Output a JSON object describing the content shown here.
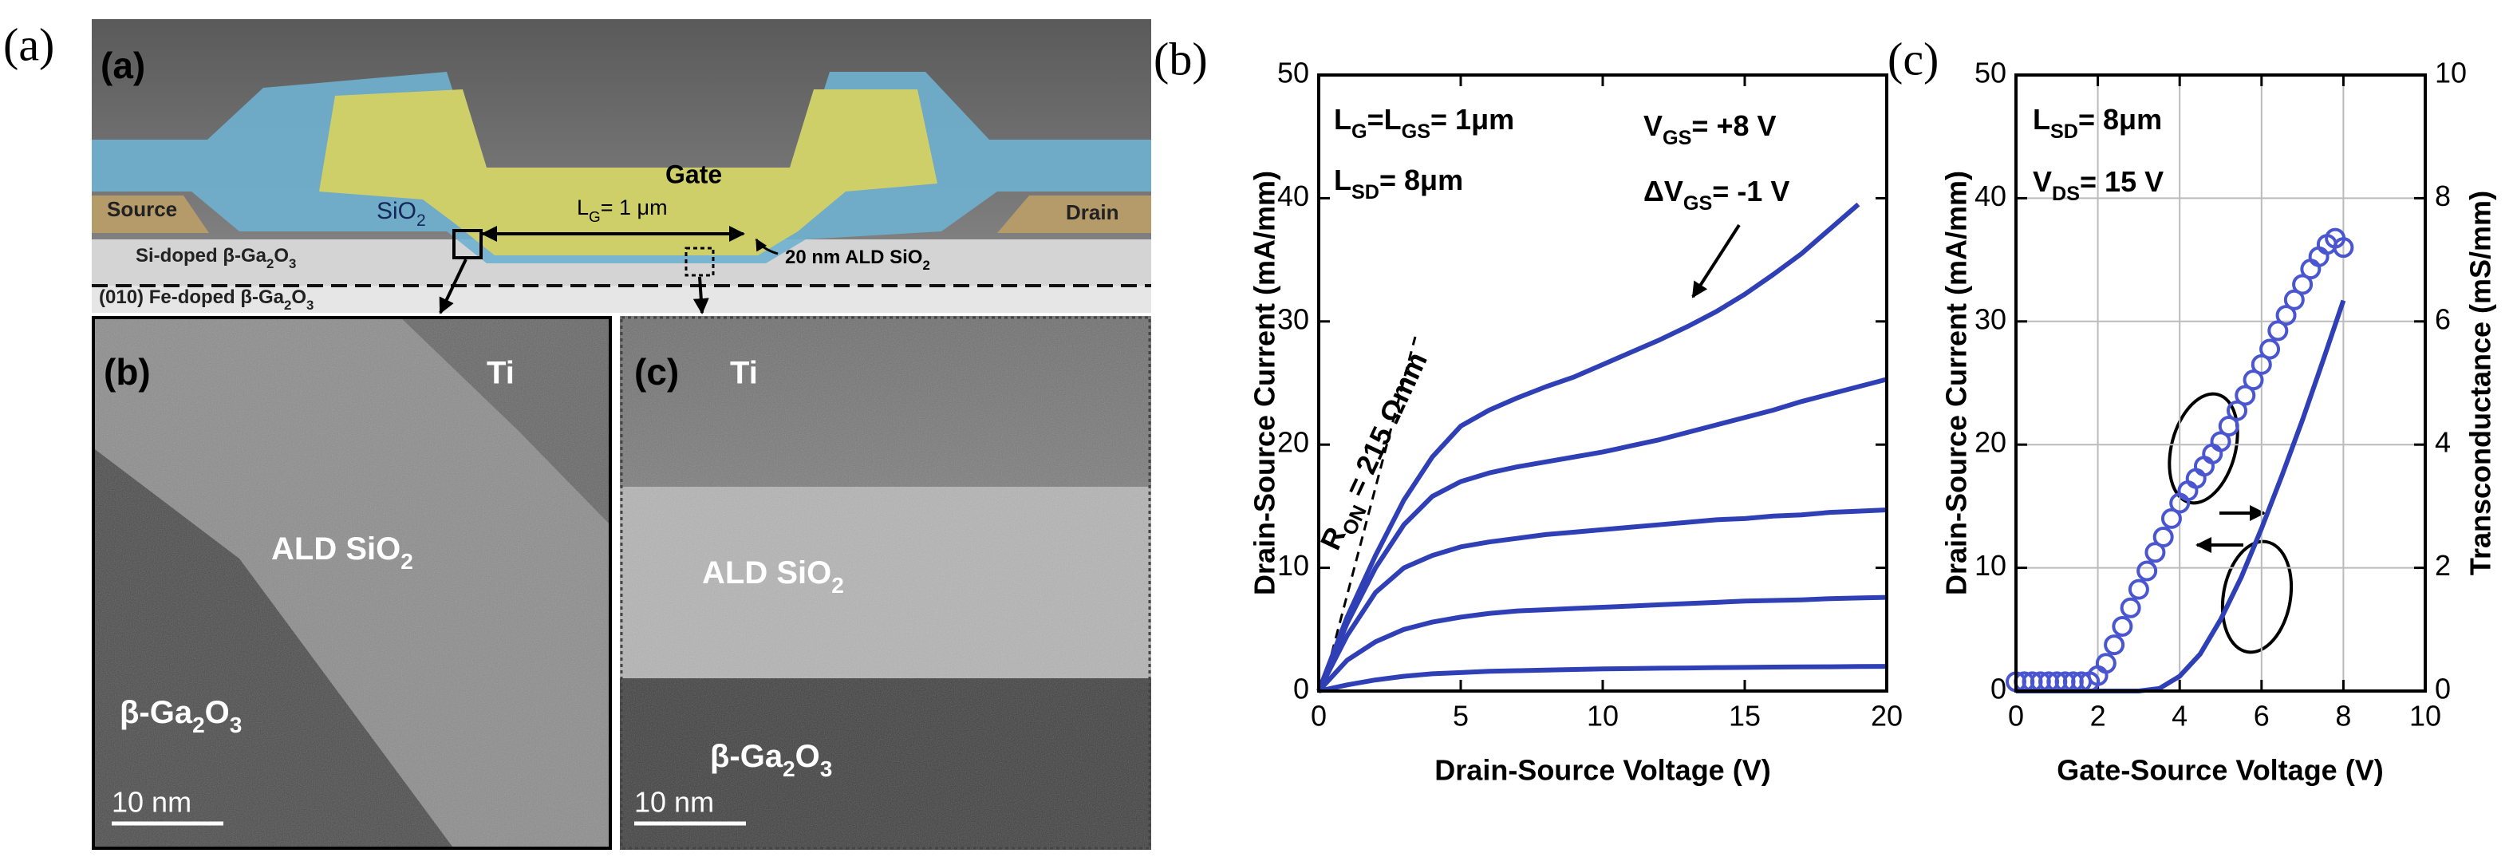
{
  "panel_a": {
    "label_outer": "(a)",
    "label_inner": "(a)",
    "gate": "Gate",
    "source": "Source",
    "drain": "Drain",
    "sio2": [
      "SiO",
      "2"
    ],
    "gate_length": [
      "L",
      "G",
      "= 1 μm"
    ],
    "ald_note": [
      "20 nm ALD SiO",
      "2"
    ],
    "si_doped": [
      "Si-doped β-Ga",
      "2",
      "O",
      "3"
    ],
    "fe_doped": [
      "(010) Fe-doped β-Ga",
      "2",
      "O",
      "3"
    ],
    "tem_b": {
      "label": "(b)",
      "ti": "Ti",
      "oxide": [
        "ALD SiO",
        "2"
      ],
      "substrate": [
        "β-Ga",
        "2",
        "O",
        "3"
      ],
      "scale": "10 nm"
    },
    "tem_c": {
      "label": "(c)",
      "ti": "Ti",
      "oxide": [
        "ALD SiO",
        "2"
      ],
      "substrate": [
        "β-Ga",
        "2",
        "O",
        "3"
      ],
      "scale": "10 nm"
    }
  },
  "chart_data": [
    {
      "type": "line",
      "panel_label": "(b)",
      "xlabel": "Drain-Source Voltage (V)",
      "ylabel": "Drain-Source Current (mA/mm)",
      "x": [
        0,
        1,
        2,
        3,
        4,
        5,
        6,
        7,
        8,
        9,
        10,
        11,
        12,
        13,
        14,
        15,
        16,
        17,
        18,
        19,
        20
      ],
      "series": [
        {
          "color": "#2f3fb5",
          "values": [
            0,
            6,
            11,
            15.5,
            19,
            21.5,
            22.8,
            23.8,
            24.7,
            25.5,
            26.5,
            27.5,
            28.5,
            29.6,
            30.8,
            32.2,
            33.8,
            35.5,
            37.5,
            39.5,
            null
          ]
        },
        {
          "color": "#2f3fb5",
          "values": [
            0,
            5.5,
            10,
            13.5,
            15.8,
            17,
            17.7,
            18.2,
            18.6,
            19,
            19.4,
            19.9,
            20.4,
            21,
            21.6,
            22.2,
            22.8,
            23.5,
            24.1,
            24.7,
            25.3
          ]
        },
        {
          "color": "#2f3fb5",
          "values": [
            0,
            4.5,
            8,
            10,
            11,
            11.7,
            12.1,
            12.4,
            12.7,
            12.9,
            13.1,
            13.3,
            13.5,
            13.7,
            13.9,
            14,
            14.2,
            14.3,
            14.5,
            14.6,
            14.7
          ]
        },
        {
          "color": "#2f3fb5",
          "values": [
            0,
            2.5,
            4,
            5,
            5.6,
            6,
            6.3,
            6.5,
            6.6,
            6.7,
            6.8,
            6.9,
            7,
            7.1,
            7.2,
            7.3,
            7.35,
            7.4,
            7.5,
            7.55,
            7.6
          ]
        },
        {
          "color": "#2f3fb5",
          "values": [
            0,
            0.5,
            0.9,
            1.2,
            1.4,
            1.5,
            1.6,
            1.65,
            1.7,
            1.75,
            1.8,
            1.82,
            1.85,
            1.87,
            1.9,
            1.92,
            1.94,
            1.96,
            1.97,
            1.99,
            2
          ]
        }
      ],
      "xlim": [
        0,
        20
      ],
      "xticks": [
        0,
        5,
        10,
        15,
        20
      ],
      "ylim": [
        0,
        50
      ],
      "yticks": [
        0,
        10,
        20,
        30,
        40,
        50
      ],
      "grid": false,
      "annotations": [
        [
          "L",
          "G",
          "=L",
          "GS",
          "= 1μm"
        ],
        [
          "L",
          "SD",
          "= 8μm"
        ],
        [
          "V",
          "GS",
          "= +8 V"
        ],
        [
          "ΔV",
          "GS",
          "= -1 V"
        ],
        [
          "R",
          "ON",
          " = 215 Ωmm"
        ]
      ]
    },
    {
      "type": "line",
      "panel_label": "(c)",
      "xlabel": "Gate-Source Voltage (V)",
      "ylabel": "Drain-Source Current (mA/mm)",
      "y2label": "Transconductance (mS/mm)",
      "series": [
        {
          "color": "#2f3fb5",
          "axis": "y",
          "marker": "none",
          "x": [
            0,
            0.5,
            1,
            1.5,
            2,
            2.5,
            3,
            3.5,
            4,
            4.5,
            5,
            5.5,
            6,
            6.5,
            7,
            7.5,
            8
          ],
          "values": [
            0,
            0,
            0,
            0,
            0,
            0,
            0,
            0.2,
            1.2,
            3,
            5.8,
            9.2,
            13.2,
            17.5,
            22,
            26.8,
            31.7
          ]
        },
        {
          "color": "#4a55d0",
          "axis": "y2",
          "marker": "circle",
          "x": [
            0,
            0.2,
            0.4,
            0.6,
            0.8,
            1,
            1.2,
            1.4,
            1.6,
            1.8,
            2,
            2.2,
            2.4,
            2.6,
            2.8,
            3,
            3.2,
            3.4,
            3.6,
            3.8,
            4,
            4.2,
            4.4,
            4.6,
            4.8,
            5,
            5.2,
            5.4,
            5.6,
            5.8,
            6,
            6.2,
            6.4,
            6.6,
            6.8,
            7,
            7.2,
            7.4,
            7.6,
            7.8,
            8
          ],
          "values": [
            0.15,
            0.15,
            0.15,
            0.15,
            0.15,
            0.15,
            0.15,
            0.15,
            0.15,
            0.15,
            0.25,
            0.45,
            0.75,
            1.05,
            1.35,
            1.65,
            1.95,
            2.25,
            2.5,
            2.8,
            3.05,
            3.25,
            3.45,
            3.65,
            3.85,
            4.05,
            4.3,
            4.55,
            4.8,
            5.05,
            5.3,
            5.55,
            5.85,
            6.1,
            6.35,
            6.6,
            6.85,
            7.05,
            7.25,
            7.35,
            7.2
          ]
        }
      ],
      "xlim": [
        0,
        10
      ],
      "xticks": [
        0,
        2,
        4,
        6,
        8,
        10
      ],
      "ylim": [
        0,
        50
      ],
      "yticks": [
        0,
        10,
        20,
        30,
        40,
        50
      ],
      "y2lim": [
        0,
        10
      ],
      "y2ticks": [
        0,
        2,
        4,
        6,
        8,
        10
      ],
      "grid": true,
      "annotations": [
        [
          "L",
          "SD",
          "= 8μm"
        ],
        [
          "V",
          "DS",
          "= 15 V"
        ]
      ]
    }
  ]
}
